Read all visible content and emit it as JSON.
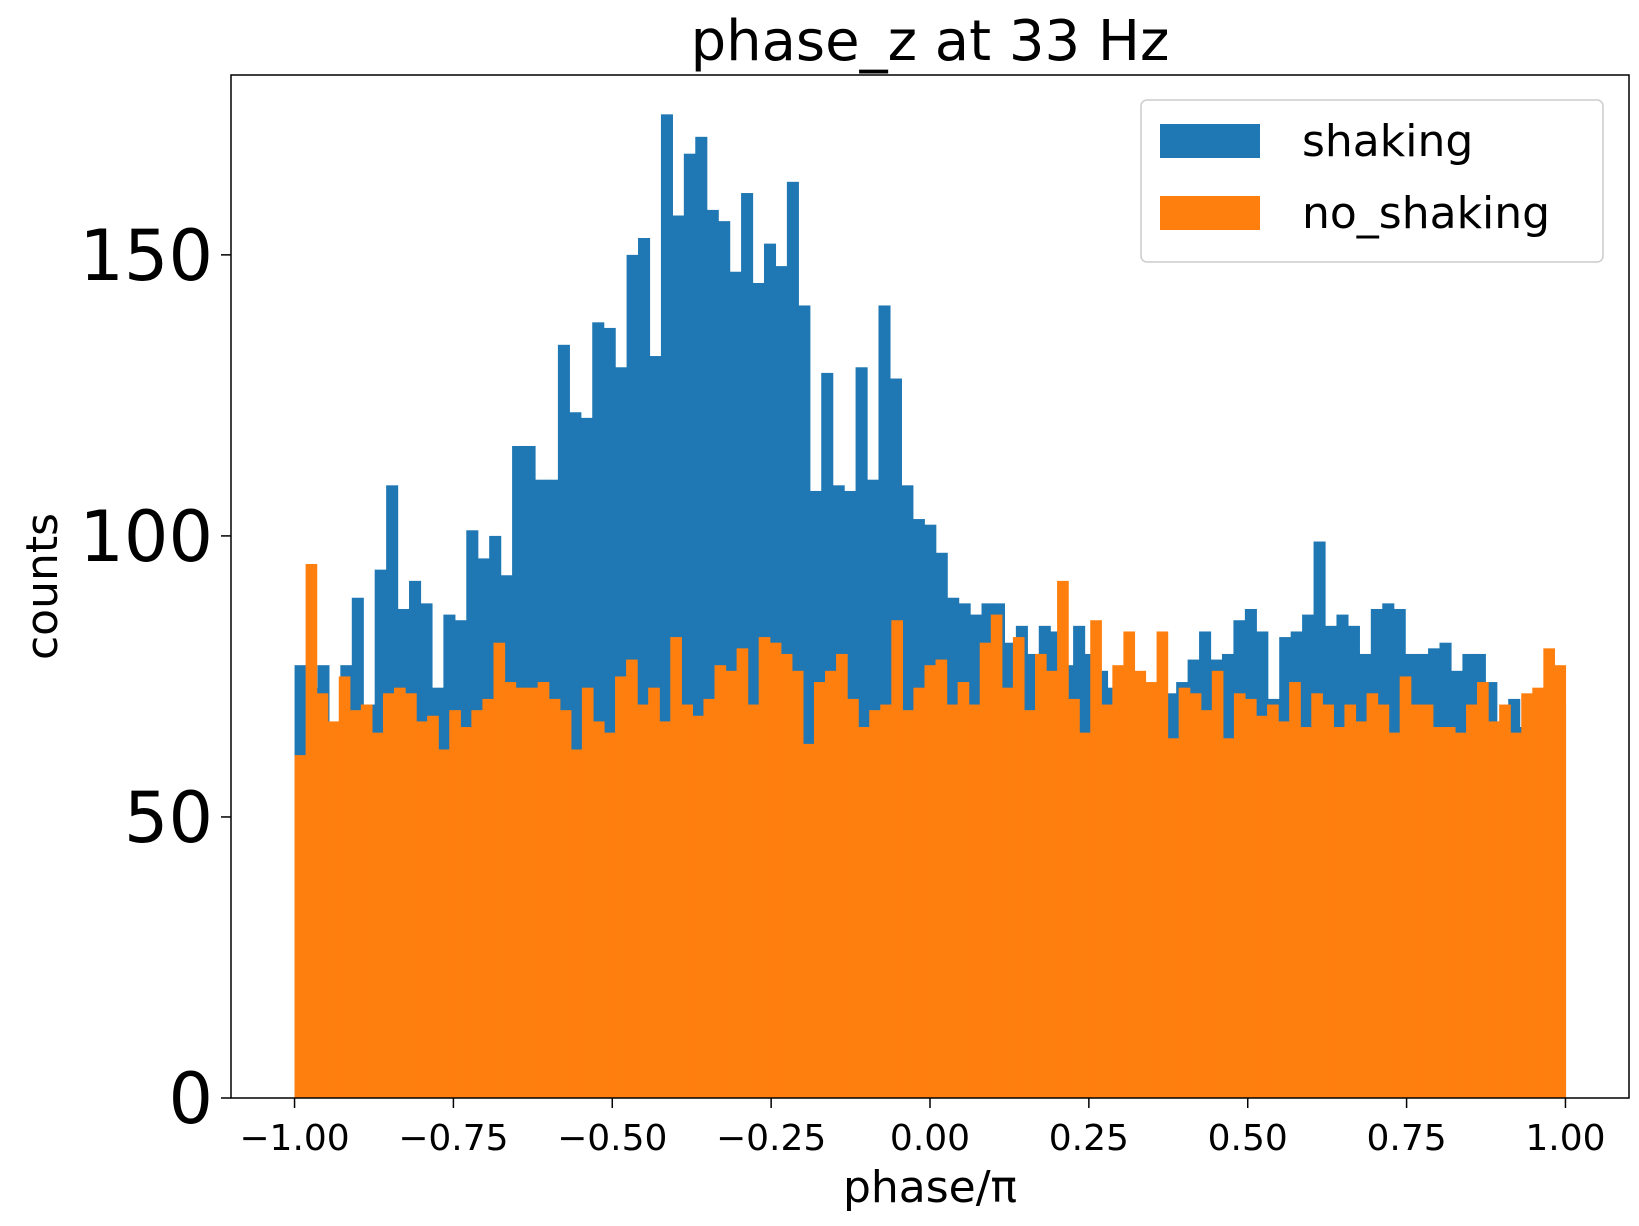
{
  "chart_data": {
    "type": "bar",
    "title": "phase_z at 33 Hz",
    "xlabel": "phase/π",
    "ylabel": "counts",
    "xlim": [
      -1.1,
      1.1
    ],
    "ylim": [
      0,
      182
    ],
    "x_ticks": [
      -1.0,
      -0.75,
      -0.5,
      -0.25,
      0.0,
      0.25,
      0.5,
      0.75,
      1.0
    ],
    "x_tick_labels": [
      "−1.00",
      "−0.75",
      "−0.50",
      "−0.25",
      "0.00",
      "0.25",
      "0.50",
      "0.75",
      "1.00"
    ],
    "y_ticks": [
      0,
      50,
      100,
      150
    ],
    "y_tick_labels": [
      "0",
      "50",
      "100",
      "150"
    ],
    "bin_range": [
      -1.0,
      1.0
    ],
    "legend_position": "upper right",
    "grid": false,
    "series": [
      {
        "name": "shaking",
        "color": "#1f77b4",
        "values": [
          77,
          73,
          77,
          62,
          77,
          89,
          70,
          94,
          109,
          87,
          92,
          88,
          73,
          86,
          85,
          101,
          96,
          100,
          93,
          116,
          116,
          110,
          110,
          134,
          122,
          121,
          138,
          137,
          130,
          150,
          153,
          132,
          175,
          157,
          168,
          171,
          158,
          156,
          147,
          161,
          145,
          152,
          148,
          163,
          141,
          108,
          129,
          109,
          108,
          130,
          110,
          141,
          128,
          109,
          103,
          102,
          97,
          89,
          88,
          86,
          88,
          88,
          81,
          84,
          79,
          84,
          83,
          77,
          84,
          79,
          76,
          73,
          66,
          73,
          67,
          71,
          72,
          74,
          78,
          83,
          78,
          79,
          85,
          87,
          83,
          71,
          82,
          83,
          86,
          99,
          84,
          86,
          84,
          79,
          87,
          88,
          87,
          79,
          79,
          80,
          81,
          76,
          79,
          79,
          74,
          67,
          71,
          66,
          67,
          72,
          70
        ]
      },
      {
        "name": "no_shaking",
        "color": "#ff7f0e",
        "values": [
          61,
          95,
          72,
          67,
          75,
          69,
          70,
          65,
          72,
          73,
          72,
          67,
          68,
          62,
          69,
          66,
          69,
          71,
          81,
          74,
          73,
          73,
          74,
          71,
          69,
          62,
          73,
          67,
          65,
          75,
          78,
          70,
          73,
          67,
          82,
          70,
          68,
          71,
          77,
          76,
          80,
          70,
          82,
          81,
          79,
          76,
          63,
          74,
          76,
          79,
          71,
          66,
          69,
          70,
          85,
          69,
          73,
          77,
          78,
          70,
          74,
          70,
          81,
          86,
          73,
          82,
          69,
          79,
          76,
          92,
          71,
          65,
          85,
          70,
          77,
          83,
          76,
          74,
          83,
          64,
          73,
          72,
          69,
          76,
          64,
          72,
          71,
          68,
          70,
          67,
          74,
          66,
          72,
          70,
          66,
          70,
          67,
          72,
          70,
          65,
          75,
          70,
          70,
          66,
          66,
          65,
          70,
          74,
          67,
          70,
          65,
          72,
          73,
          80,
          77
        ]
      }
    ]
  }
}
